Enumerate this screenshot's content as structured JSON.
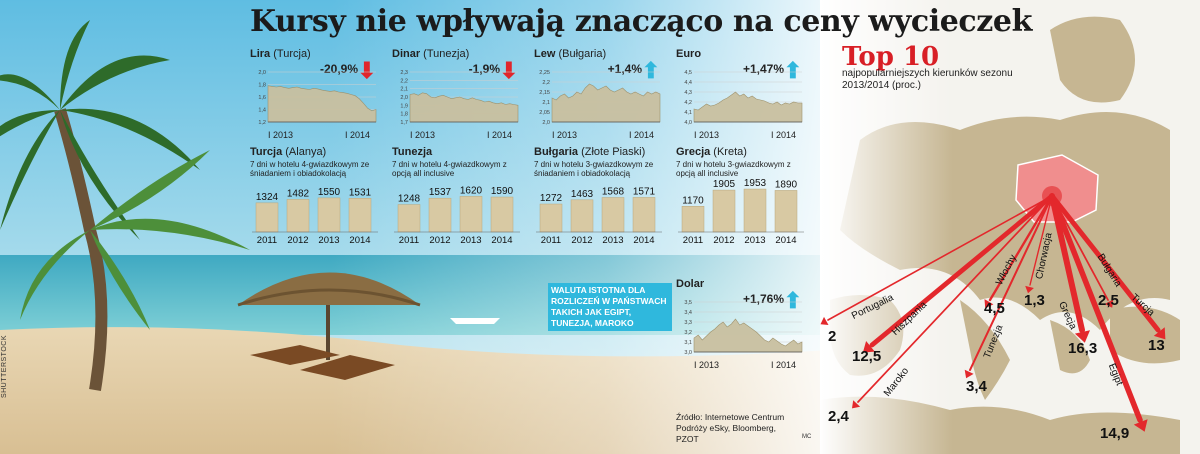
{
  "title": "Kursy nie wpływają znacząco na ceny wycieczek",
  "side_credit": "SHUTTERSTOCK",
  "currencies": [
    {
      "name": "Lira",
      "place": "(Turcja)",
      "change": "-20,9%",
      "direction": "down",
      "yticks": [
        "2,0",
        "1,8",
        "1,6",
        "1,4",
        "1,2"
      ],
      "ylim": [
        1.2,
        2.0
      ],
      "years": [
        "I 2013",
        "I 2014"
      ],
      "values": [
        1.78,
        1.77,
        1.76,
        1.77,
        1.75,
        1.74,
        1.75,
        1.76,
        1.74,
        1.73,
        1.72,
        1.74,
        1.73,
        1.71,
        1.7,
        1.69,
        1.7,
        1.68,
        1.67,
        1.66,
        1.64,
        1.62,
        1.57,
        1.5,
        1.42,
        1.38,
        1.4
      ]
    },
    {
      "name": "Dinar",
      "place": "(Tunezja)",
      "change": "-1,9%",
      "direction": "down",
      "yticks": [
        "2,3",
        "2,2",
        "2,1",
        "2,0",
        "1,9",
        "1,8",
        "1,7"
      ],
      "ylim": [
        1.7,
        2.3
      ],
      "years": [
        "I 2013",
        "I 2014"
      ],
      "values": [
        2.03,
        2.04,
        2.02,
        2.05,
        2.04,
        2.0,
        1.99,
        2.01,
        2.02,
        2.0,
        1.98,
        1.99,
        2.0,
        1.98,
        1.97,
        1.99,
        1.97,
        1.96,
        1.94,
        1.95,
        1.93,
        1.92,
        1.93,
        1.91,
        1.92,
        1.91,
        1.9
      ]
    },
    {
      "name": "Lew",
      "place": "(Bułgaria)",
      "change": "+1,4%",
      "direction": "up",
      "yticks": [
        "2,25",
        "2,2",
        "2,15",
        "2,1",
        "2,05",
        "2,0"
      ],
      "ylim": [
        2.0,
        2.25
      ],
      "years": [
        "I 2013",
        "I 2014"
      ],
      "values": [
        2.12,
        2.11,
        2.13,
        2.14,
        2.12,
        2.13,
        2.15,
        2.14,
        2.17,
        2.19,
        2.18,
        2.16,
        2.17,
        2.18,
        2.16,
        2.15,
        2.16,
        2.17,
        2.15,
        2.14,
        2.15,
        2.14,
        2.13,
        2.15,
        2.14,
        2.15,
        2.14
      ]
    },
    {
      "name": "Euro",
      "place": "",
      "change": "+1,47%",
      "direction": "up",
      "yticks": [
        "4,5",
        "4,4",
        "4,3",
        "4,2",
        "4,1",
        "4,0"
      ],
      "ylim": [
        4.0,
        4.5
      ],
      "years": [
        "I 2013",
        "I 2014"
      ],
      "values": [
        4.13,
        4.12,
        4.15,
        4.18,
        4.16,
        4.17,
        4.19,
        4.22,
        4.24,
        4.27,
        4.3,
        4.26,
        4.28,
        4.24,
        4.26,
        4.23,
        4.22,
        4.21,
        4.19,
        4.18,
        4.2,
        4.17,
        4.19,
        4.18,
        4.2,
        4.19,
        4.19
      ]
    },
    {
      "name": "Dolar",
      "place": "",
      "change": "+1,76%",
      "direction": "up",
      "yticks": [
        "3,5",
        "3,4",
        "3,3",
        "3,2",
        "3,1",
        "3,0"
      ],
      "ylim": [
        3.0,
        3.5
      ],
      "years": [
        "I 2013",
        "I 2014"
      ],
      "values": [
        3.14,
        3.17,
        3.12,
        3.16,
        3.2,
        3.23,
        3.27,
        3.3,
        3.25,
        3.28,
        3.33,
        3.27,
        3.29,
        3.26,
        3.23,
        3.2,
        3.16,
        3.12,
        3.1,
        3.14,
        3.11,
        3.08,
        3.06,
        3.09,
        3.12,
        3.08,
        3.1
      ]
    }
  ],
  "destinations": [
    {
      "name": "Turcja",
      "place": "(Alanya)",
      "desc": "7 dni w hotelu 4-gwiazdkowym ze śniadaniem i obiadokolacją",
      "years": [
        "2011",
        "2012",
        "2013",
        "2014"
      ],
      "values": [
        1324,
        1482,
        1550,
        1531
      ],
      "labels": [
        "1324",
        "1482",
        "1550",
        "1531"
      ]
    },
    {
      "name": "Tunezja",
      "place": "",
      "desc": "7 dni w hotelu 4-gwiazdkowym z opcją all inclusive",
      "years": [
        "2011",
        "2012",
        "2013",
        "2014"
      ],
      "values": [
        1248,
        1537,
        1620,
        1590
      ],
      "labels": [
        "1248",
        "1537",
        "1620",
        "1590"
      ]
    },
    {
      "name": "Bułgaria",
      "place": "(Złote Piaski)",
      "desc": "7 dni w hotelu 3-gwiazdkowym ze śniadaniem i obiadokolacją",
      "years": [
        "2011",
        "2012",
        "2013",
        "2014"
      ],
      "values": [
        1272,
        1463,
        1568,
        1571
      ],
      "labels": [
        "1272",
        "1463",
        "1568",
        "1571"
      ]
    },
    {
      "name": "Grecja",
      "place": "(Kreta)",
      "desc": "7 dni w hotelu 3-gwiazdkowym z opcją all inclusive",
      "years": [
        "2011",
        "2012",
        "2013",
        "2014"
      ],
      "values": [
        1170,
        1905,
        1953,
        1890
      ],
      "labels": [
        "1170",
        "1905",
        "1953",
        "1890"
      ]
    }
  ],
  "note": "WALUTA ISTOTNA DLA ROZLICZEŃ W PAŃSTWACH TAKICH JAK EGIPT, TUNEZJA, MAROKO",
  "top10": {
    "title": "Top 10",
    "subtitle": "najpopularniejszych kierunków sezonu 2013/2014 (proc.)",
    "items": [
      {
        "name": "Portugalia",
        "value": "2"
      },
      {
        "name": "Hiszpania",
        "value": "12,5"
      },
      {
        "name": "Maroko",
        "value": "2,4"
      },
      {
        "name": "Włochy",
        "value": "4,5"
      },
      {
        "name": "Tunezja",
        "value": "3,4"
      },
      {
        "name": "Chorwacja",
        "value": "1,3"
      },
      {
        "name": "Grecja",
        "value": "16,3"
      },
      {
        "name": "Bułgaria",
        "value": "2,5"
      },
      {
        "name": "Egipt",
        "value": "14,9"
      },
      {
        "name": "Turcja",
        "value": "13"
      }
    ]
  },
  "source": "Źródło: Internetowe Centrum Podróży eSky, Bloomberg, PZOT",
  "credit": "MC",
  "colors": {
    "red": "#e0262c",
    "arrow_red": "#e3282c",
    "cyan": "#2fb8dd",
    "bar": "#d8c9a3",
    "line_fill": "#c9c0a0",
    "sky": "#7fcde6",
    "sea": "#3fb2c7",
    "sand": "#e7d2ad"
  },
  "chart_data": [
    {
      "type": "line",
      "title": "Lira (Turcja)",
      "annotation": "-20,9%",
      "x": [
        "I 2013",
        "I 2014"
      ],
      "ylim": [
        1.2,
        2.0
      ]
    },
    {
      "type": "line",
      "title": "Dinar (Tunezja)",
      "annotation": "-1,9%",
      "x": [
        "I 2013",
        "I 2014"
      ],
      "ylim": [
        1.7,
        2.3
      ]
    },
    {
      "type": "line",
      "title": "Lew (Bułgaria)",
      "annotation": "+1,4%",
      "x": [
        "I 2013",
        "I 2014"
      ],
      "ylim": [
        2.0,
        2.25
      ]
    },
    {
      "type": "line",
      "title": "Euro",
      "annotation": "+1,47%",
      "x": [
        "I 2013",
        "I 2014"
      ],
      "ylim": [
        4.0,
        4.5
      ]
    },
    {
      "type": "line",
      "title": "Dolar",
      "annotation": "+1,76%",
      "x": [
        "I 2013",
        "I 2014"
      ],
      "ylim": [
        3.0,
        3.5
      ]
    },
    {
      "type": "bar",
      "title": "Turcja (Alanya)",
      "categories": [
        "2011",
        "2012",
        "2013",
        "2014"
      ],
      "values": [
        1324,
        1482,
        1550,
        1531
      ]
    },
    {
      "type": "bar",
      "title": "Tunezja",
      "categories": [
        "2011",
        "2012",
        "2013",
        "2014"
      ],
      "values": [
        1248,
        1537,
        1620,
        1590
      ]
    },
    {
      "type": "bar",
      "title": "Bułgaria (Złote Piaski)",
      "categories": [
        "2011",
        "2012",
        "2013",
        "2014"
      ],
      "values": [
        1272,
        1463,
        1568,
        1571
      ]
    },
    {
      "type": "bar",
      "title": "Grecja (Kreta)",
      "categories": [
        "2011",
        "2012",
        "2013",
        "2014"
      ],
      "values": [
        1170,
        1905,
        1953,
        1890
      ]
    },
    {
      "type": "bar",
      "title": "Top 10 najpopularniejszych kierunków sezonu 2013/2014 (proc.)",
      "categories": [
        "Portugalia",
        "Hiszpania",
        "Maroko",
        "Włochy",
        "Tunezja",
        "Chorwacja",
        "Grecja",
        "Bułgaria",
        "Egipt",
        "Turcja"
      ],
      "values": [
        2,
        12.5,
        2.4,
        4.5,
        3.4,
        1.3,
        16.3,
        2.5,
        14.9,
        13
      ]
    }
  ]
}
